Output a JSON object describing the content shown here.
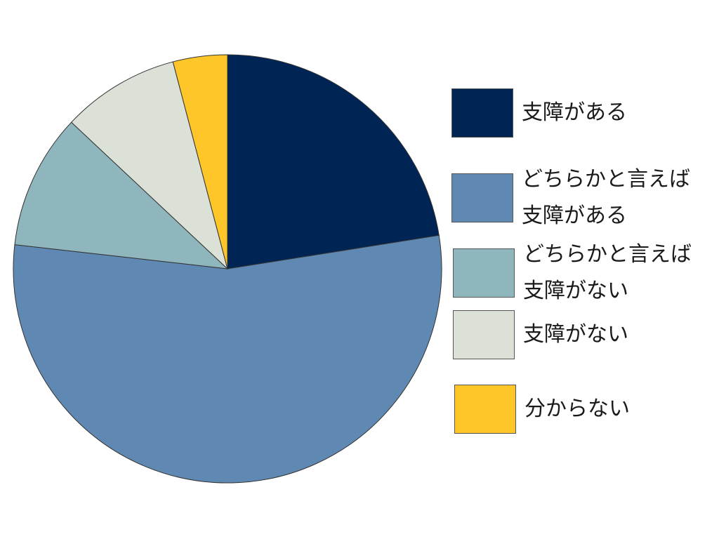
{
  "chart_data": {
    "type": "pie",
    "title": "",
    "start": "12 o'clock",
    "direction": "clockwise",
    "legend_position": "right",
    "slices": [
      {
        "label": "支障がある",
        "value": 22.5,
        "color": "#002554"
      },
      {
        "label": "どちらかと言えば\n支障がある",
        "value": 54.3,
        "color": "#5f89b2"
      },
      {
        "label": "どちらかと言えば\n支障がない",
        "value": 10.2,
        "color": "#8fb6bd"
      },
      {
        "label": "支障がない",
        "value": 8.9,
        "color": "#dbe1d6"
      },
      {
        "label": "分からない",
        "value": 4.1,
        "color": "#ffc629"
      }
    ]
  }
}
